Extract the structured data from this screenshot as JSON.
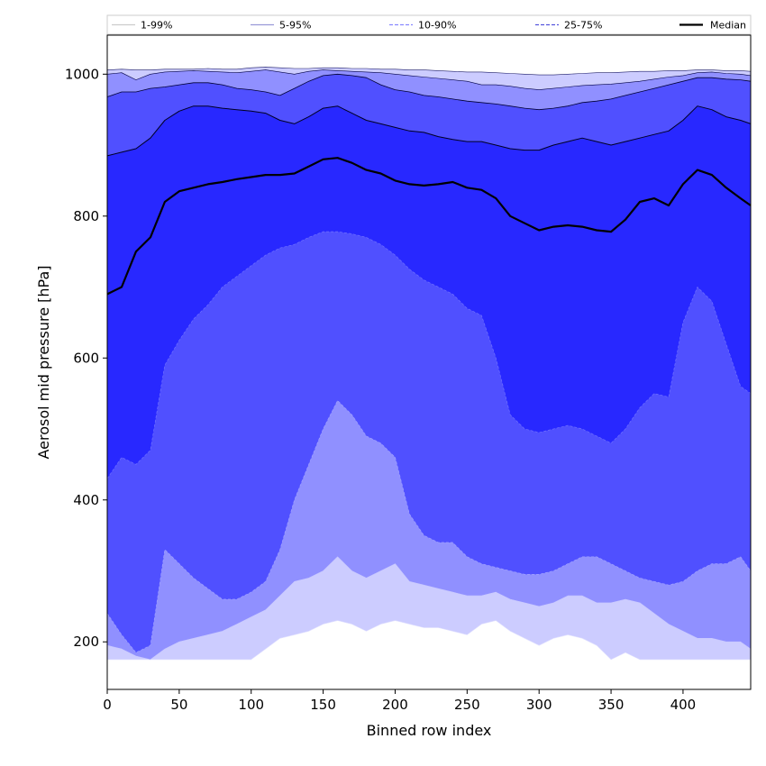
{
  "chart_data": {
    "type": "area",
    "title": "",
    "xlabel": "Binned row index",
    "ylabel": "Aerosol mid pressure [hPa]",
    "xlim": [
      0,
      447
    ],
    "ylim": [
      133,
      1055
    ],
    "xticks": [
      0,
      50,
      100,
      150,
      200,
      250,
      300,
      350,
      400
    ],
    "yticks": [
      200,
      400,
      600,
      800,
      1000
    ],
    "legend": [
      {
        "label": "1-99%",
        "style": "solid",
        "color": "#cccccc"
      },
      {
        "label": "5-95%",
        "style": "solid",
        "color": "#9a9ad8"
      },
      {
        "label": "10-90%",
        "style": "dashed",
        "color": "#8888ff"
      },
      {
        "label": "25-75%",
        "style": "dashed",
        "color": "#5555dd"
      },
      {
        "label": "Median",
        "style": "solid",
        "color": "#000000"
      }
    ],
    "legend_position": "top",
    "band_colors": [
      "#ccccff",
      "#9090ff",
      "#5050ff",
      "#2828ff"
    ],
    "x": [
      0,
      10,
      20,
      30,
      40,
      50,
      60,
      70,
      80,
      90,
      100,
      110,
      120,
      130,
      140,
      150,
      160,
      170,
      180,
      190,
      200,
      210,
      220,
      230,
      240,
      250,
      260,
      270,
      280,
      290,
      300,
      310,
      320,
      330,
      340,
      350,
      360,
      370,
      380,
      390,
      400,
      410,
      420,
      430,
      440,
      447
    ],
    "series": [
      {
        "name": "p1",
        "values": [
          175,
          175,
          175,
          175,
          175,
          175,
          175,
          175,
          175,
          175,
          175,
          190,
          205,
          210,
          215,
          225,
          230,
          225,
          215,
          225,
          230,
          225,
          220,
          220,
          215,
          210,
          225,
          230,
          215,
          205,
          195,
          205,
          210,
          205,
          195,
          175,
          185,
          175,
          175,
          175,
          175,
          175,
          175,
          175,
          175,
          175
        ]
      },
      {
        "name": "p5",
        "values": [
          195,
          190,
          180,
          175,
          190,
          200,
          205,
          210,
          215,
          225,
          235,
          245,
          265,
          285,
          290,
          300,
          320,
          300,
          290,
          300,
          310,
          285,
          280,
          275,
          270,
          265,
          265,
          270,
          260,
          255,
          250,
          255,
          265,
          265,
          255,
          255,
          260,
          255,
          240,
          225,
          215,
          205,
          205,
          200,
          200,
          190
        ]
      },
      {
        "name": "p10",
        "values": [
          240,
          210,
          185,
          195,
          330,
          310,
          290,
          275,
          260,
          260,
          270,
          285,
          330,
          400,
          450,
          500,
          540,
          520,
          490,
          480,
          460,
          380,
          350,
          340,
          340,
          320,
          310,
          305,
          300,
          295,
          295,
          300,
          310,
          320,
          320,
          310,
          300,
          290,
          285,
          280,
          285,
          300,
          310,
          310,
          320,
          300
        ]
      },
      {
        "name": "p25",
        "values": [
          430,
          460,
          450,
          470,
          590,
          625,
          655,
          675,
          700,
          715,
          730,
          745,
          755,
          760,
          770,
          778,
          778,
          775,
          770,
          760,
          745,
          725,
          710,
          700,
          690,
          670,
          660,
          600,
          520,
          500,
          495,
          500,
          505,
          500,
          490,
          480,
          500,
          530,
          550,
          545,
          650,
          700,
          680,
          620,
          560,
          550
        ]
      },
      {
        "name": "median",
        "values": [
          690,
          700,
          750,
          770,
          820,
          835,
          840,
          845,
          848,
          852,
          855,
          858,
          858,
          860,
          870,
          880,
          882,
          875,
          865,
          860,
          850,
          845,
          843,
          845,
          848,
          840,
          837,
          825,
          800,
          790,
          780,
          785,
          787,
          785,
          780,
          778,
          795,
          820,
          825,
          815,
          845,
          865,
          858,
          840,
          825,
          815
        ]
      },
      {
        "name": "p75",
        "values": [
          885,
          890,
          895,
          910,
          935,
          948,
          955,
          955,
          952,
          950,
          948,
          945,
          935,
          930,
          940,
          952,
          955,
          945,
          935,
          930,
          925,
          920,
          918,
          912,
          908,
          905,
          905,
          900,
          895,
          893,
          893,
          900,
          905,
          910,
          905,
          900,
          905,
          910,
          915,
          920,
          935,
          955,
          950,
          940,
          935,
          930
        ]
      },
      {
        "name": "p90",
        "values": [
          968,
          975,
          975,
          980,
          982,
          985,
          988,
          988,
          985,
          980,
          978,
          975,
          970,
          980,
          990,
          998,
          1000,
          998,
          995,
          985,
          978,
          975,
          970,
          968,
          965,
          962,
          960,
          958,
          955,
          952,
          950,
          952,
          955,
          960,
          962,
          965,
          970,
          975,
          980,
          985,
          990,
          995,
          995,
          993,
          992,
          990
        ]
      },
      {
        "name": "p95",
        "values": [
          1000,
          1002,
          992,
          1000,
          1003,
          1004,
          1005,
          1004,
          1003,
          1002,
          1004,
          1006,
          1003,
          1000,
          1004,
          1006,
          1005,
          1004,
          1003,
          1002,
          1000,
          998,
          996,
          994,
          992,
          990,
          985,
          985,
          983,
          980,
          978,
          980,
          982,
          984,
          985,
          986,
          988,
          990,
          993,
          996,
          998,
          1002,
          1003,
          1001,
          1000,
          998
        ]
      },
      {
        "name": "p99",
        "values": [
          1006,
          1007,
          1006,
          1006,
          1007,
          1007,
          1007,
          1008,
          1007,
          1007,
          1009,
          1010,
          1009,
          1008,
          1008,
          1009,
          1009,
          1008,
          1008,
          1007,
          1007,
          1006,
          1006,
          1005,
          1004,
          1003,
          1003,
          1002,
          1001,
          1000,
          999,
          999,
          1000,
          1001,
          1002,
          1002,
          1003,
          1004,
          1004,
          1005,
          1005,
          1006,
          1006,
          1005,
          1005,
          1004
        ]
      }
    ]
  }
}
